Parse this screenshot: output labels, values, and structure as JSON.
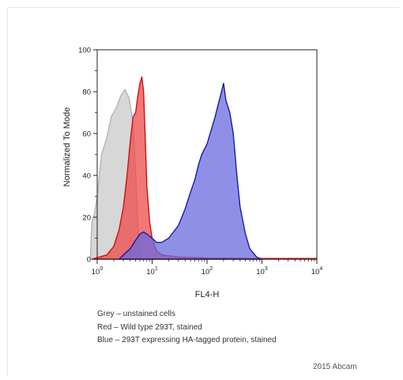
{
  "chart_data": {
    "type": "area",
    "ylabel": "Normalized To Mode",
    "xlabel": "FL4-H",
    "x_scale": "log",
    "xlim": [
      1,
      10000
    ],
    "ylim": [
      0,
      100
    ],
    "y_ticks": [
      "0",
      "20",
      "40",
      "60",
      "80",
      "100"
    ],
    "x_ticks": [
      {
        "base": "10",
        "exp": "0"
      },
      {
        "base": "10",
        "exp": "1"
      },
      {
        "base": "10",
        "exp": "2"
      },
      {
        "base": "10",
        "exp": "3"
      },
      {
        "base": "10",
        "exp": "4"
      }
    ],
    "series": [
      {
        "legend_name": "Grey",
        "fill": "#d3d3d3",
        "stroke": "#b5b5b5",
        "points": [
          [
            0.75,
            0
          ],
          [
            0.8,
            18
          ],
          [
            0.9,
            22
          ],
          [
            1.0,
            30
          ],
          [
            1.2,
            50
          ],
          [
            1.5,
            58
          ],
          [
            1.8,
            68
          ],
          [
            2.2,
            72
          ],
          [
            2.7,
            78
          ],
          [
            3.2,
            81
          ],
          [
            3.8,
            77
          ],
          [
            4.5,
            65
          ],
          [
            5.0,
            42
          ],
          [
            5.5,
            15
          ],
          [
            6.0,
            4
          ],
          [
            7.0,
            0
          ]
        ]
      },
      {
        "legend_name": "Red",
        "fill": "#ee4a4a",
        "stroke": "#cc1111",
        "points": [
          [
            0.8,
            0
          ],
          [
            1.5,
            2
          ],
          [
            2.0,
            6
          ],
          [
            2.5,
            14
          ],
          [
            3.0,
            25
          ],
          [
            3.5,
            40
          ],
          [
            4.0,
            56
          ],
          [
            4.5,
            68
          ],
          [
            5.0,
            70
          ],
          [
            5.5,
            78
          ],
          [
            6.0,
            84
          ],
          [
            6.5,
            87
          ],
          [
            7.0,
            80
          ],
          [
            7.5,
            58
          ],
          [
            8.0,
            35
          ],
          [
            9.0,
            18
          ],
          [
            10.0,
            10
          ],
          [
            12.0,
            4
          ],
          [
            15.0,
            2
          ],
          [
            30.0,
            1
          ],
          [
            100.0,
            0.5
          ],
          [
            1000.0,
            0.3
          ],
          [
            10000.0,
            0.3
          ]
        ]
      },
      {
        "legend_name": "Blue",
        "fill": "#6a6adf",
        "stroke": "#1a1aa8",
        "points": [
          [
            2.5,
            0
          ],
          [
            3.0,
            2
          ],
          [
            4.0,
            5
          ],
          [
            5.0,
            9
          ],
          [
            6.0,
            12
          ],
          [
            7.0,
            13
          ],
          [
            8.0,
            12
          ],
          [
            10.0,
            10
          ],
          [
            12.0,
            8
          ],
          [
            15.0,
            8
          ],
          [
            20.0,
            10
          ],
          [
            30.0,
            16
          ],
          [
            40.0,
            24
          ],
          [
            50.0,
            32
          ],
          [
            60.0,
            38
          ],
          [
            70.0,
            45
          ],
          [
            80.0,
            50
          ],
          [
            100.0,
            55
          ],
          [
            120.0,
            62
          ],
          [
            140.0,
            68
          ],
          [
            160.0,
            74
          ],
          [
            180.0,
            79
          ],
          [
            200.0,
            84
          ],
          [
            220.0,
            76
          ],
          [
            260.0,
            70
          ],
          [
            300.0,
            60
          ],
          [
            350.0,
            40
          ],
          [
            400.0,
            25
          ],
          [
            500.0,
            12
          ],
          [
            600.0,
            5
          ],
          [
            800.0,
            1
          ],
          [
            1000.0,
            0
          ]
        ]
      }
    ]
  },
  "legend": [
    "Grey – unstained cells",
    "Red – Wild type 293T, stained",
    "Blue – 293T expressing HA-tagged protein, stained"
  ],
  "credit": "2015 Abcam"
}
